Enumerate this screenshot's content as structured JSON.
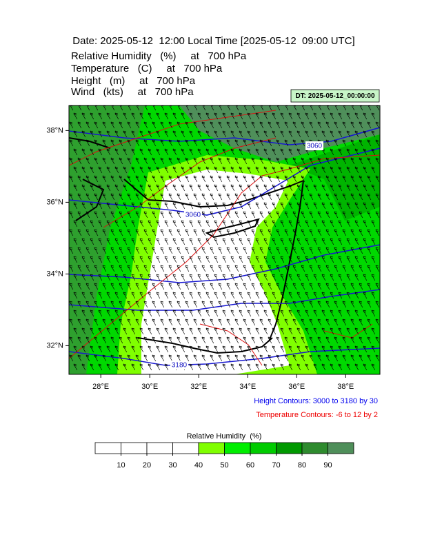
{
  "header": {
    "title": "Date: 2025-05-12  12:00 Local Time [2025-05-12  09:00 UTC]",
    "lines": [
      "Relative Humidity   (%)     at   700 hPa",
      "Temperature   (C)     at   700 hPa",
      "Height   (m)     at   700 hPa",
      "Wind   (kts)     at   700 hPa"
    ],
    "dt_label": "DT: 2025-05-12_00:00:00"
  },
  "map": {
    "xlim": [
      26.7,
      39.4
    ],
    "ylim": [
      31.2,
      38.7
    ],
    "xticks": [
      {
        "value": 28,
        "label": "28°E"
      },
      {
        "value": 30,
        "label": "30°E"
      },
      {
        "value": 32,
        "label": "32°E"
      },
      {
        "value": 34,
        "label": "34°E"
      },
      {
        "value": 36,
        "label": "36°E"
      },
      {
        "value": 38,
        "label": "38°E"
      }
    ],
    "yticks": [
      {
        "value": 32,
        "label": "32°N"
      },
      {
        "value": 34,
        "label": "34°N"
      },
      {
        "value": 36,
        "label": "36°N"
      },
      {
        "value": 38,
        "label": "38°N"
      }
    ],
    "contour_labels": [
      "3060",
      "3060",
      "3180"
    ]
  },
  "footnotes": {
    "height": "Height Contours: 3000 to 3180 by 30",
    "temperature": "Temperature Contours: -6 to 12 by 2"
  },
  "colorbar": {
    "title": "Relative Humidity  (%)",
    "ticks": [
      10,
      20,
      30,
      40,
      50,
      60,
      70,
      80,
      90
    ],
    "colors": [
      "#ffffff",
      "#ffffff",
      "#ffffff",
      "#ffffff",
      "#80ff00",
      "#00ee00",
      "#00cc00",
      "#009900",
      "#2e8b2e",
      "#4f8f5a"
    ]
  }
}
